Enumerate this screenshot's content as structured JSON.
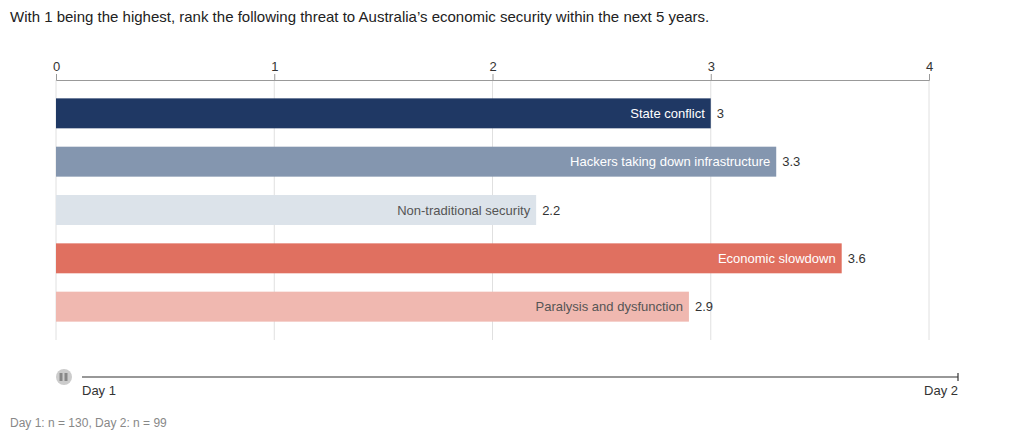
{
  "chart_data": {
    "type": "bar",
    "orientation": "horizontal",
    "title": "With 1 being the highest, rank the following threat to Australia’s economic security within the next 5 years.",
    "categories": [
      "State conflict",
      "Hackers taking down infrastructure",
      "Non-traditional security",
      "Economic slowdown",
      "Paralysis and dysfunction"
    ],
    "values": [
      3.0,
      3.3,
      2.2,
      3.6,
      2.9
    ],
    "colors": [
      "#1f3864",
      "#8496af",
      "#dce3ea",
      "#e07060",
      "#f0b8b0"
    ],
    "xlim": [
      0,
      4
    ],
    "xticks": [
      0,
      1,
      2,
      3,
      4
    ],
    "grid": true,
    "data_labels": true,
    "tick_labels": "x",
    "annotations": [
      "Day 1",
      "Day 2",
      "Day 1: n = 130, Day 2: n = 99"
    ]
  }
}
